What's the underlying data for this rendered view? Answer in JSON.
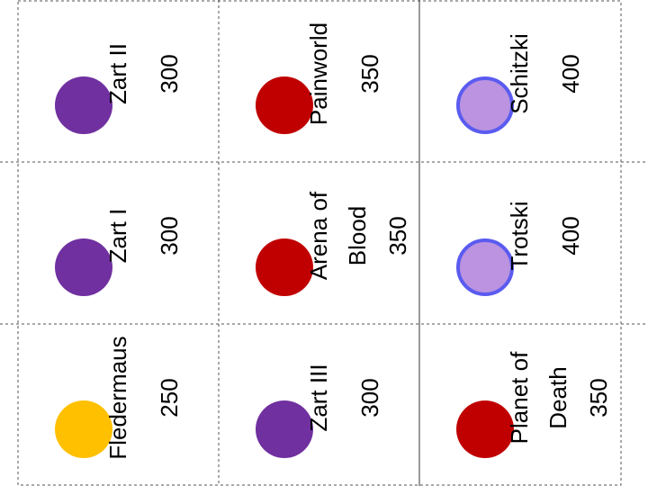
{
  "cards": [
    {
      "name_lines": [
        "Zart II"
      ],
      "price": 300,
      "color": "#7030a0"
    },
    {
      "name_lines": [
        "Zart I"
      ],
      "price": 300,
      "color": "#7030a0"
    },
    {
      "name_lines": [
        "Fledermaus"
      ],
      "price": 250,
      "color": "#ffc000"
    },
    {
      "name_lines": [
        "Painworld"
      ],
      "price": 350,
      "color": "#c00000"
    },
    {
      "name_lines": [
        "Arena of",
        "Blood"
      ],
      "price": 350,
      "color": "#c00000"
    },
    {
      "name_lines": [
        "Zart III"
      ],
      "price": 300,
      "color": "#7030a0"
    },
    {
      "name_lines": [
        "Schitzki"
      ],
      "price": 400,
      "color": "#bb93e0",
      "stroke": "#5b5bf0"
    },
    {
      "name_lines": [
        "Trotski"
      ],
      "price": 400,
      "color": "#bb93e0",
      "stroke": "#5b5bf0"
    },
    {
      "name_lines": [
        "Planet of",
        "Death"
      ],
      "price": 350,
      "color": "#c00000"
    }
  ]
}
